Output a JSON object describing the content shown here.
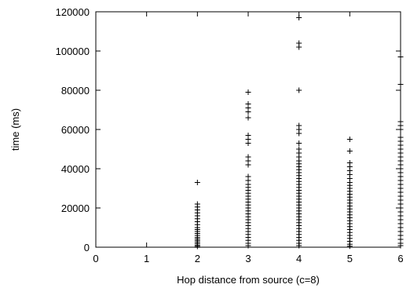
{
  "chart_data": {
    "type": "scatter",
    "marker": "+",
    "title": "",
    "xlabel": "Hop distance from source (c=8)",
    "ylabel": "time (ms)",
    "xlim": [
      0,
      6
    ],
    "ylim": [
      0,
      120000
    ],
    "xticks": [
      0,
      1,
      2,
      3,
      4,
      5,
      6
    ],
    "yticks": [
      0,
      20000,
      40000,
      60000,
      80000,
      100000,
      120000
    ],
    "grid": false,
    "legend": "none",
    "series": [
      {
        "x": 2,
        "values": [
          33000,
          22000,
          20500,
          19000,
          17500,
          16000,
          14500,
          13000,
          11500,
          10000,
          9000,
          8000,
          7000,
          6000,
          5000,
          4200,
          3400,
          2600,
          1800,
          1000,
          400
        ]
      },
      {
        "x": 3,
        "values": [
          79000,
          73000,
          71000,
          69000,
          66000,
          57000,
          55000,
          53000,
          46000,
          44000,
          42000,
          36000,
          34000,
          32000,
          30500,
          29000,
          27500,
          26000,
          24500,
          23000,
          21500,
          20000,
          18500,
          17000,
          15500,
          14000,
          12500,
          11000,
          9500,
          8000,
          6500,
          5000,
          3500,
          2000,
          800
        ]
      },
      {
        "x": 4,
        "values": [
          117000,
          104000,
          102000,
          80000,
          62000,
          60000,
          58000,
          53000,
          50000,
          48000,
          46000,
          44000,
          42500,
          41000,
          39500,
          38000,
          36500,
          35000,
          33500,
          32000,
          30500,
          29000,
          27500,
          26000,
          24500,
          23000,
          21500,
          20000,
          18500,
          17000,
          15500,
          14000,
          12500,
          11000,
          9500,
          8000,
          6500,
          5000,
          3500,
          2000,
          800
        ]
      },
      {
        "x": 5,
        "values": [
          55000,
          49000,
          43000,
          41000,
          39000,
          37000,
          35000,
          33000,
          31500,
          30000,
          28500,
          27000,
          25500,
          24000,
          22500,
          21000,
          19500,
          18000,
          16500,
          15000,
          13500,
          12000,
          10500,
          9000,
          7500,
          6000,
          4500,
          3000,
          1500,
          500
        ]
      },
      {
        "x": 6,
        "values": [
          97000,
          83000,
          64000,
          62000,
          60000,
          56000,
          54000,
          52000,
          50000,
          48000,
          46000,
          44000,
          42000,
          40000,
          38000,
          36000,
          34000,
          32000,
          30000,
          28000,
          26000,
          24000,
          22000,
          20000,
          18000,
          16000,
          14000,
          12000,
          10000,
          8000,
          6000,
          4000,
          2000,
          800
        ]
      }
    ]
  }
}
